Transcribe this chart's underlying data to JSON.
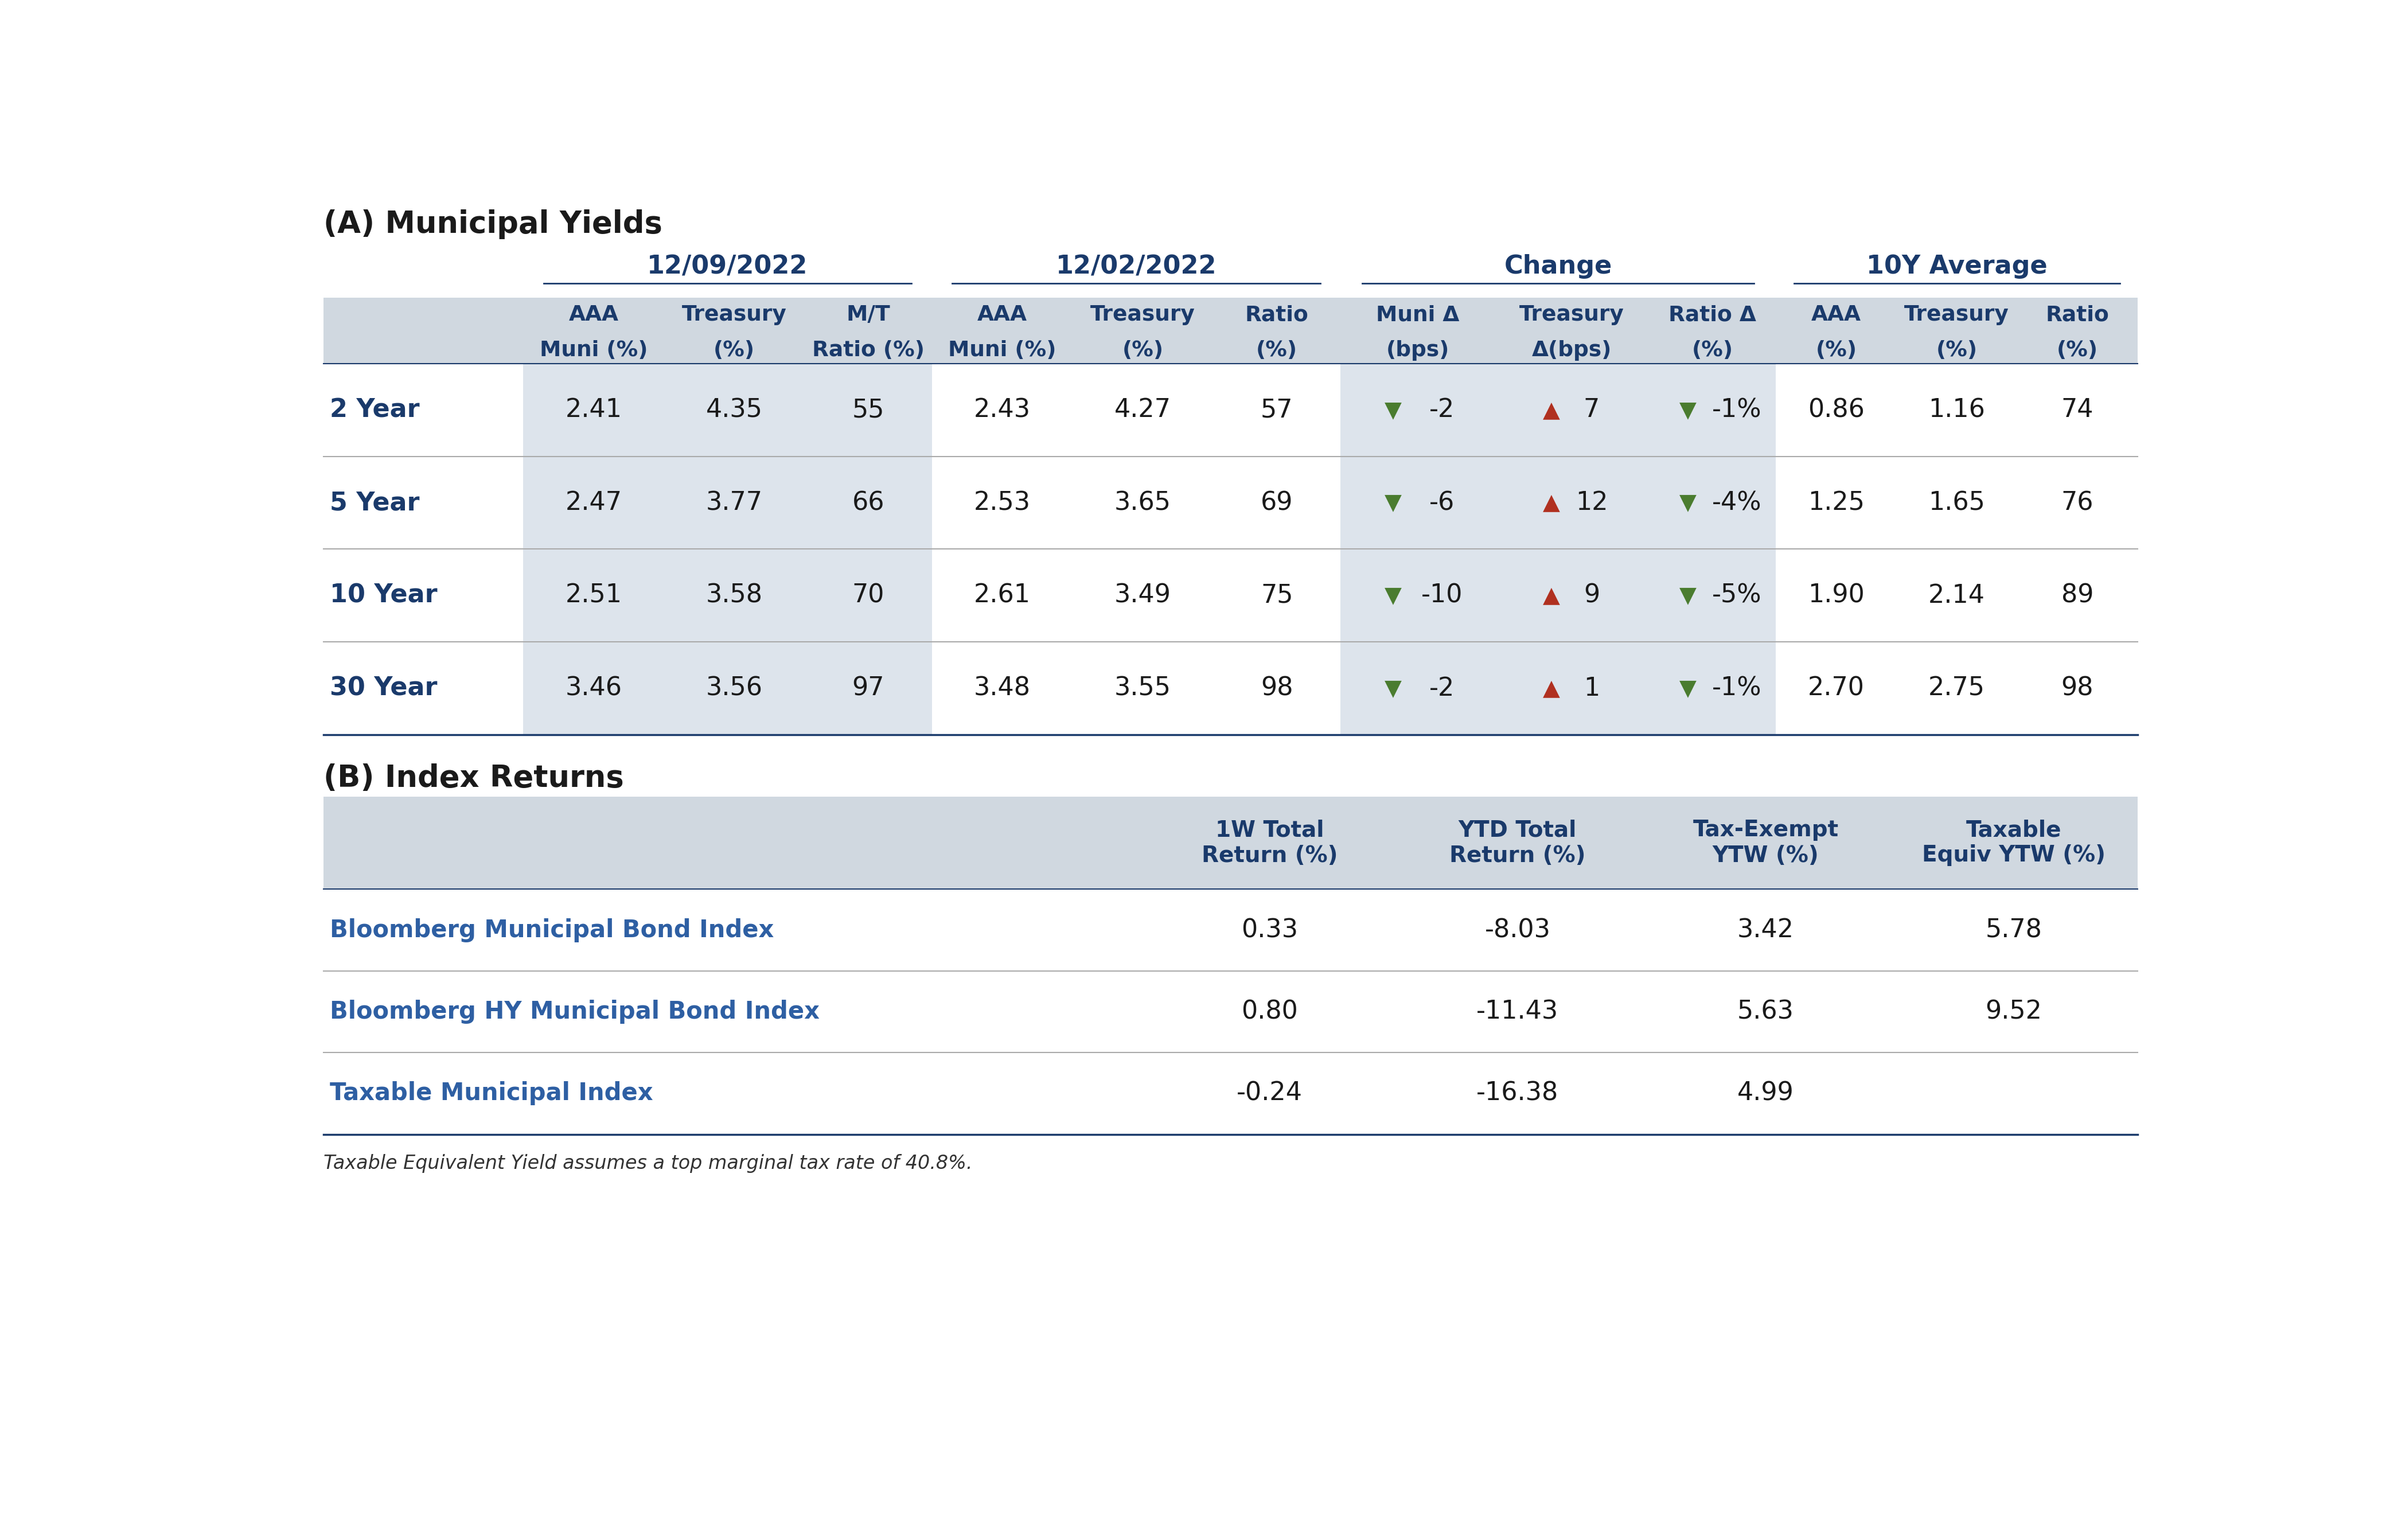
{
  "title_a": "(A) Municipal Yields",
  "title_b": "(B) Index Returns",
  "footnote": "Taxable Equivalent Yield assumes a top marginal tax rate of 40.8%.",
  "section_a": {
    "date_headers": [
      "12/09/2022",
      "12/02/2022",
      "Change",
      "10Y Average"
    ],
    "col_headers_line1": [
      "AAA",
      "Treasury",
      "M/T",
      "AAA",
      "Treasury",
      "Ratio",
      "Muni Δ",
      "Treasury",
      "Ratio Δ",
      "AAA",
      "Treasury",
      "Ratio"
    ],
    "col_headers_line2": [
      "Muni (%)",
      "(%)",
      "Ratio (%)",
      "Muni (%)",
      "(%)",
      "(%)",
      "(bps)",
      "Δ(bps)",
      "(%)",
      "(%)",
      "(%)",
      "(%)"
    ],
    "row_labels": [
      "2 Year",
      "5 Year",
      "10 Year",
      "30 Year"
    ],
    "data": [
      [
        "2.41",
        "4.35",
        "55",
        "2.43",
        "4.27",
        "57",
        "",
        "7",
        "-1%",
        "0.86",
        "1.16",
        "74"
      ],
      [
        "2.47",
        "3.77",
        "66",
        "2.53",
        "3.65",
        "69",
        "",
        "12",
        "-4%",
        "1.25",
        "1.65",
        "76"
      ],
      [
        "2.51",
        "3.58",
        "70",
        "2.61",
        "3.49",
        "75",
        "",
        "9",
        "-5%",
        "1.90",
        "2.14",
        "89"
      ],
      [
        "3.46",
        "3.56",
        "97",
        "3.48",
        "3.55",
        "98",
        "",
        "1",
        "-1%",
        "2.70",
        "2.75",
        "98"
      ]
    ],
    "change_muni_values": [
      "-2",
      "-6",
      "-10",
      "-2"
    ],
    "change_treasury_values": [
      "7",
      "12",
      "9",
      "1"
    ],
    "change_ratio_values": [
      "-1%",
      "-4%",
      "-5%",
      "-1%"
    ]
  },
  "section_b": {
    "col_headers": [
      "1W Total\nReturn (%)",
      "YTD Total\nReturn (%)",
      "Tax-Exempt\nYTW (%)",
      "Taxable\nEquiv YTW (%)"
    ],
    "row_labels": [
      "Bloomberg Municipal Bond Index",
      "Bloomberg HY Municipal Bond Index",
      "Taxable Municipal Index"
    ],
    "data": [
      [
        "0.33",
        "-8.03",
        "3.42",
        "5.78"
      ],
      [
        "0.80",
        "-11.43",
        "5.63",
        "9.52"
      ],
      [
        "-0.24",
        "-16.38",
        "4.99",
        ""
      ]
    ]
  },
  "colors": {
    "header_text": "#1a3a6b",
    "dark_navy": "#1a3a6b",
    "row_label_color": "#1a3a6b",
    "index_name_color": "#2e5fa3",
    "header_bg": "#d0d8e0",
    "stripe_bg": "#dde4ec",
    "white_bg": "#ffffff",
    "green_arrow": "#4a7c2f",
    "red_arrow": "#b03020",
    "section_title_color": "#1a1a1a",
    "footnote_color": "#333333",
    "line_color": "#aaaaaa",
    "text_color": "#1a1a1a"
  }
}
